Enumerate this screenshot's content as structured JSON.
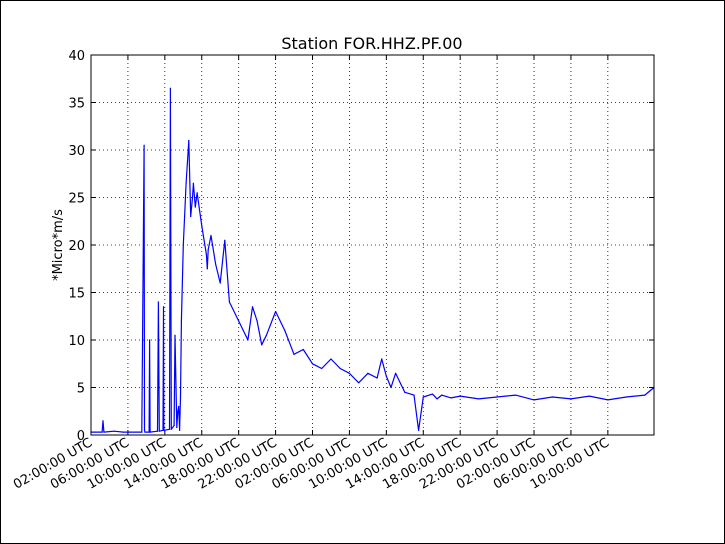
{
  "chart_data": {
    "type": "line",
    "title": "Station FOR.HHZ.PF.00",
    "xlabel": "",
    "ylabel": "*Micro*m/s",
    "ylim": [
      0,
      40
    ],
    "yticks": [
      0,
      5,
      10,
      15,
      20,
      25,
      30,
      35,
      40
    ],
    "xlim_hours": [
      0,
      61
    ],
    "xticks": [
      {
        "hour": 0,
        "label": "02:00:00 UTC"
      },
      {
        "hour": 4,
        "label": "06:00:00 UTC"
      },
      {
        "hour": 8,
        "label": "10:00:00 UTC"
      },
      {
        "hour": 12,
        "label": "14:00:00 UTC"
      },
      {
        "hour": 16,
        "label": "18:00:00 UTC"
      },
      {
        "hour": 20,
        "label": "22:00:00 UTC"
      },
      {
        "hour": 24,
        "label": "02:00:00 UTC"
      },
      {
        "hour": 28,
        "label": "06:00:00 UTC"
      },
      {
        "hour": 32,
        "label": "10:00:00 UTC"
      },
      {
        "hour": 36,
        "label": "14:00:00 UTC"
      },
      {
        "hour": 40,
        "label": "18:00:00 UTC"
      },
      {
        "hour": 44,
        "label": "22:00:00 UTC"
      },
      {
        "hour": 48,
        "label": "02:00:00 UTC"
      },
      {
        "hour": 52,
        "label": "06:00:00 UTC"
      },
      {
        "hour": 56,
        "label": "10:00:00 UTC"
      }
    ],
    "grid": true,
    "line_color": "#0000ff",
    "series": [
      {
        "x": [
          0,
          1.2,
          1.3,
          1.4,
          2.5,
          3.5,
          5.5,
          5.75,
          5.8,
          5.85,
          6.3,
          6.35,
          6.4,
          7.2,
          7.3,
          7.4,
          7.8,
          7.85,
          7.9,
          8.5,
          8.6,
          8.7,
          9.0,
          9.1,
          9.3,
          9.4,
          9.5,
          9.6,
          9.7,
          9.8,
          10.0,
          10.3,
          10.6,
          10.8,
          11.0,
          11.1,
          11.3,
          11.5,
          12.0,
          12.5,
          12.6,
          12.7,
          13.0,
          13.5,
          14.0,
          14.5,
          15.0,
          16.0,
          17.0,
          17.5,
          18.0,
          18.5,
          19.0,
          20.0,
          21.0,
          22.0,
          23.0,
          24.0,
          25.0,
          26.0,
          27.0,
          28.0,
          29.0,
          30.0,
          31.0,
          31.5,
          32.0,
          32.5,
          33.0,
          34.0,
          35.0,
          35.5,
          36.0,
          37.0,
          37.5,
          38.0,
          39.0,
          40.0,
          42.0,
          44.0,
          46.0,
          48.0,
          50.0,
          52.0,
          54.0,
          56.0,
          58.0,
          60.0,
          61.0
        ],
        "values": [
          0.3,
          0.3,
          1.5,
          0.3,
          0.4,
          0.3,
          0.3,
          30.5,
          0.5,
          0.3,
          0.3,
          10.0,
          0.3,
          0.4,
          14.0,
          0.4,
          0.5,
          13.5,
          0.5,
          0.6,
          36.5,
          0.6,
          1.0,
          10.5,
          0.8,
          2.5,
          3.0,
          0.5,
          4.0,
          12.0,
          20.0,
          26.5,
          31.0,
          23.0,
          25.0,
          26.5,
          24.0,
          25.5,
          22.0,
          19.0,
          17.5,
          19.5,
          21.0,
          18.0,
          16.0,
          20.5,
          14.0,
          12.0,
          10.0,
          13.5,
          12.0,
          9.5,
          10.5,
          13.0,
          11.0,
          8.5,
          9.0,
          7.5,
          7.0,
          8.0,
          7.0,
          6.5,
          5.5,
          6.5,
          6.0,
          8.0,
          6.2,
          5.0,
          6.5,
          4.5,
          4.2,
          0.5,
          4.0,
          4.3,
          3.8,
          4.2,
          3.9,
          4.1,
          3.8,
          4.0,
          4.2,
          3.7,
          4.0,
          3.8,
          4.1,
          3.7,
          4.0,
          4.2,
          5.0
        ]
      }
    ]
  }
}
